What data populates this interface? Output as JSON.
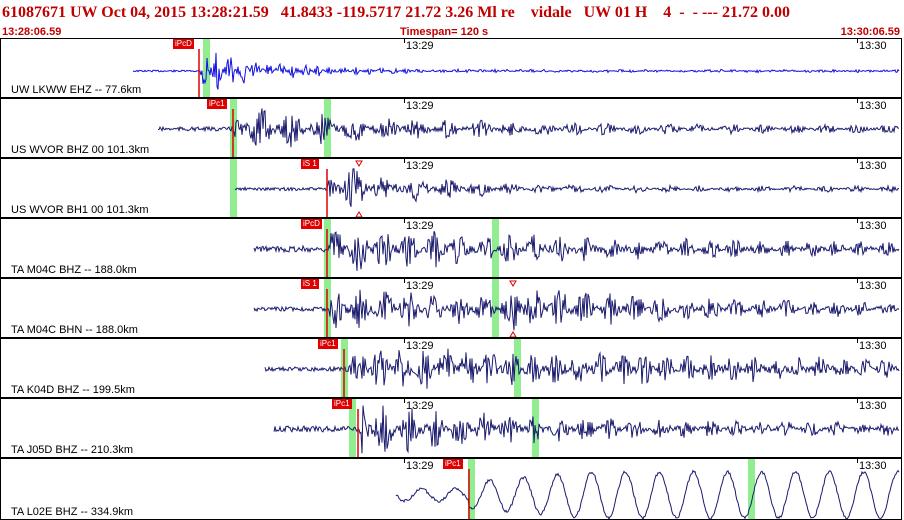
{
  "header": {
    "title": "61087671 UW Oct 04, 2015 13:28:21.59   41.8433 -119.5717 21.72 3.26 Ml re    vidale   UW 01 H    4  -  - --- 21.72 0.00",
    "start_time": "13:28:06.59",
    "timespan": "Timespan= 120 s",
    "end_time": "13:30:06.59"
  },
  "colors": {
    "header_text": "#c00000",
    "trace_first": "#1010e0",
    "trace": "#1a1a6e",
    "pick": "#e00000",
    "window": "#90ee90"
  },
  "traces": [
    {
      "channel": "UW LKWW EHZ -- 77.6km",
      "pick": "iPcD",
      "tick1": "13:29",
      "tick2": "13:30"
    },
    {
      "channel": "US WVOR BHZ 00 101.3km",
      "pick": "iPc1",
      "tick1": "13:29",
      "tick2": "13:30"
    },
    {
      "channel": "US WVOR BH1 00 101.3km",
      "pick": "iS 1",
      "tick1": "13:29",
      "tick2": "13:30"
    },
    {
      "channel": "TA M04C BHZ -- 188.0km",
      "pick": "iPcD",
      "tick1": "13:29",
      "tick2": "13:30"
    },
    {
      "channel": "TA M04C BHN -- 188.0km",
      "pick": "iS 1",
      "tick1": "13:29",
      "tick2": "13:30"
    },
    {
      "channel": "TA K04D BHZ -- 199.5km",
      "pick": "iPc1",
      "tick1": "13:29",
      "tick2": "13:30"
    },
    {
      "channel": "TA J05D BHZ -- 210.3km",
      "pick": "iPc1",
      "tick1": "13:29",
      "tick2": "13:30"
    },
    {
      "channel": "TA L02E BHZ -- 334.9km",
      "pick": "iPc1",
      "tick1": "13:29",
      "tick2": "13:30"
    }
  ]
}
